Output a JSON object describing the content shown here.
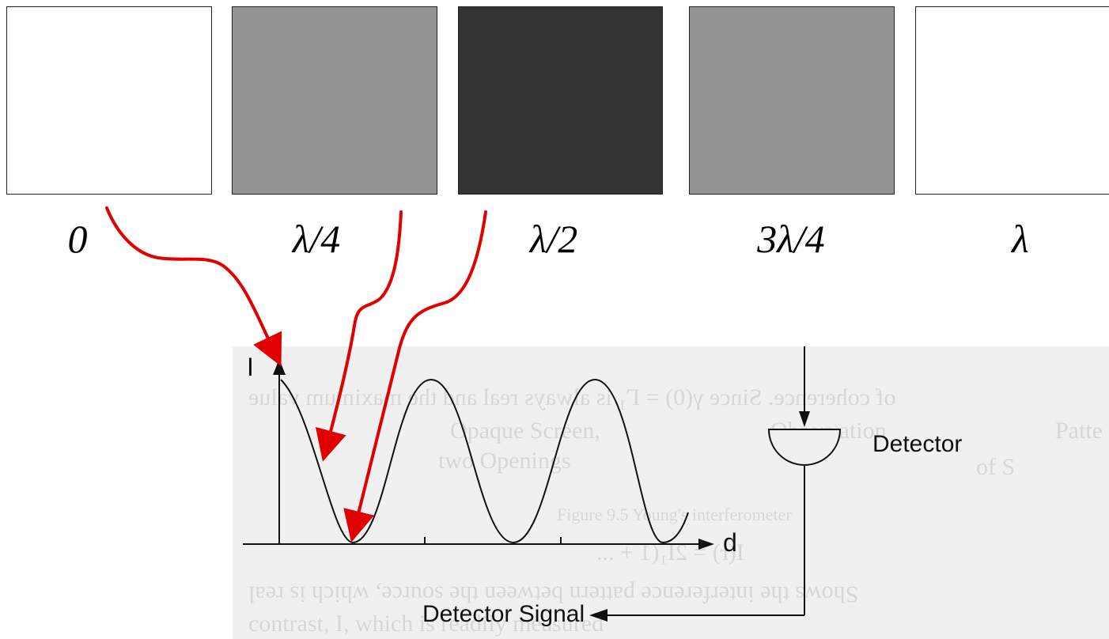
{
  "swatches": [
    {
      "phase": "0",
      "color": "#ffffff"
    },
    {
      "phase": "λ/4",
      "color": "#939393"
    },
    {
      "phase": "λ/2",
      "color": "#333333"
    },
    {
      "phase": "3λ/4",
      "color": "#939393"
    },
    {
      "phase": "λ",
      "color": "#ffffff"
    }
  ],
  "plot": {
    "y_axis_label": "I",
    "x_axis_label": "d"
  },
  "detector": {
    "label": "Detector",
    "signal_label": "Detector Signal"
  },
  "background_text": {
    "line1": "of coherence. Since γ(0) = Γ₁ is always real and the maximum value",
    "line2": "Opaque Screen,",
    "line3": "Observation",
    "line4": "Patte",
    "line5": "two Openings",
    "line6": "of S",
    "line7": "Figure 9.5 Young's interferometer",
    "line8": "I(r) = 2I₁(1 + ...",
    "line9": "Shows the interference pattern between the source, which is real",
    "line10": "contrast, I, which is readily measured"
  },
  "colors": {
    "arrow": "#e00000",
    "swatch_border": "#222222",
    "scan_background": "#f0f0f0"
  }
}
